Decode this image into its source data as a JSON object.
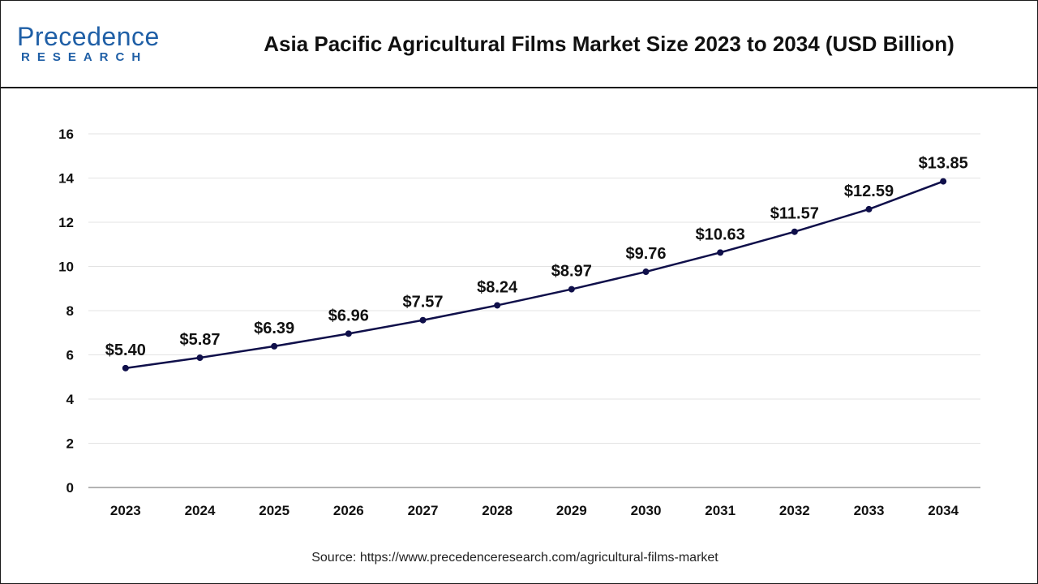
{
  "header": {
    "logo_main": "Precedence",
    "logo_sub": "RESEARCH",
    "title": "Asia Pacific Agricultural Films Market Size 2023 to 2034 (USD Billion)"
  },
  "footer": {
    "source": "Source: https://www.precedenceresearch.com/agricultural-films-market"
  },
  "colors": {
    "line": "#0f0f4a",
    "grid": "#e3e3e3",
    "axis": "#9a9a9a",
    "brand": "#1f5fa6"
  },
  "chart_data": {
    "type": "line",
    "title": "Asia Pacific Agricultural Films Market Size 2023 to 2034 (USD Billion)",
    "xlabel": "",
    "ylabel": "",
    "categories": [
      "2023",
      "2024",
      "2025",
      "2026",
      "2027",
      "2028",
      "2029",
      "2030",
      "2031",
      "2032",
      "2033",
      "2034"
    ],
    "series": [
      {
        "values": [
          5.4,
          5.87,
          6.39,
          6.96,
          7.57,
          8.24,
          8.97,
          9.76,
          10.63,
          11.57,
          12.59,
          13.85
        ],
        "labels": [
          "$5.40",
          "$5.87",
          "$6.39",
          "$6.96",
          "$7.57",
          "$8.24",
          "$8.97",
          "$9.76",
          "$10.63",
          "$11.57",
          "$12.59",
          "$13.85"
        ]
      }
    ],
    "ylim": [
      0,
      16
    ],
    "yticks": [
      0,
      2,
      4,
      6,
      8,
      10,
      12,
      14,
      16
    ],
    "grid": true,
    "legend": "none"
  }
}
